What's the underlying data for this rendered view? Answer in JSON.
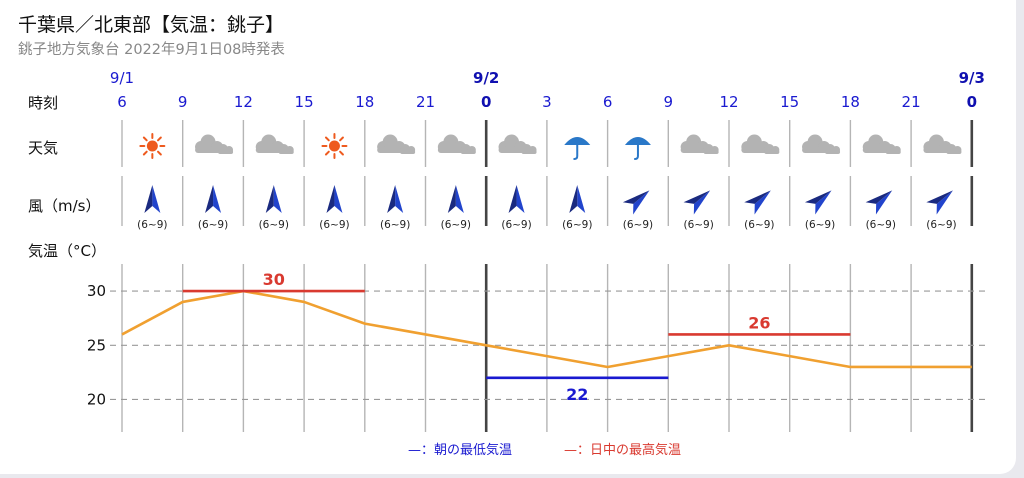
{
  "header": {
    "title": "千葉県／北東部【気温：銚子】",
    "subtitle": "銚子地方気象台 2022年9月1日08時発表"
  },
  "row_labels": {
    "time": "時刻",
    "weather": "天気",
    "wind": "風（m/s）",
    "temp": "気温（°C）"
  },
  "dates": [
    {
      "label": "9/1",
      "slot": 0
    },
    {
      "label": "9/2",
      "slot": 6
    },
    {
      "label": "9/3",
      "slot": 14
    }
  ],
  "hours": [
    "6",
    "9",
    "12",
    "15",
    "18",
    "21",
    "0",
    "3",
    "6",
    "9",
    "12",
    "15",
    "18",
    "21",
    "0"
  ],
  "bold_hours": [
    6,
    14
  ],
  "weather": [
    "sun-icon",
    "cloud-icon",
    "cloud-icon",
    "sun-icon",
    "cloud-icon",
    "cloud-icon",
    "cloud-icon",
    "umbrella-icon",
    "umbrella-icon",
    "cloud-icon",
    "cloud-icon",
    "cloud-icon",
    "cloud-icon",
    "cloud-icon"
  ],
  "wind": [
    {
      "dir": "N",
      "range": "(6~9)"
    },
    {
      "dir": "N",
      "range": "(6~9)"
    },
    {
      "dir": "N",
      "range": "(6~9)"
    },
    {
      "dir": "N",
      "range": "(6~9)"
    },
    {
      "dir": "N",
      "range": "(6~9)"
    },
    {
      "dir": "N",
      "range": "(6~9)"
    },
    {
      "dir": "N",
      "range": "(6~9)"
    },
    {
      "dir": "N",
      "range": "(6~9)"
    },
    {
      "dir": "NE",
      "range": "(6~9)"
    },
    {
      "dir": "NE",
      "range": "(6~9)"
    },
    {
      "dir": "NE",
      "range": "(6~9)"
    },
    {
      "dir": "NE",
      "range": "(6~9)"
    },
    {
      "dir": "NE",
      "range": "(6~9)"
    },
    {
      "dir": "NE",
      "range": "(6~9)"
    }
  ],
  "chart_data": {
    "type": "line",
    "ylabel": "気温（°C）",
    "ylim": [
      17,
      32.5
    ],
    "yticks": [
      20,
      25,
      30
    ],
    "grid": true,
    "x": [
      "9/1 6",
      "9",
      "12",
      "15",
      "18",
      "21",
      "9/2 0",
      "3",
      "6",
      "9",
      "12",
      "15",
      "18",
      "21",
      "9/3 0"
    ],
    "series": [
      {
        "values": [
          26,
          29,
          30,
          29,
          27,
          26,
          25,
          24,
          23,
          24,
          25,
          24,
          23,
          23,
          23
        ],
        "color": "#f0a030"
      }
    ],
    "max_temps": [
      {
        "value": 30,
        "label": "30",
        "from_slot": 1,
        "to_slot": 4,
        "color": "#d93a30"
      },
      {
        "value": 26,
        "label": "26",
        "from_slot": 9,
        "to_slot": 12,
        "color": "#d93a30"
      }
    ],
    "min_temps": [
      {
        "value": 22,
        "label": "22",
        "from_slot": 6,
        "to_slot": 9,
        "color": "#1a1ad0"
      }
    ],
    "legend": [
      {
        "label": "—：朝の最低気温",
        "color": "#1a1ad0"
      },
      {
        "label": "—：日中の最高気温",
        "color": "#d93a30"
      }
    ]
  }
}
